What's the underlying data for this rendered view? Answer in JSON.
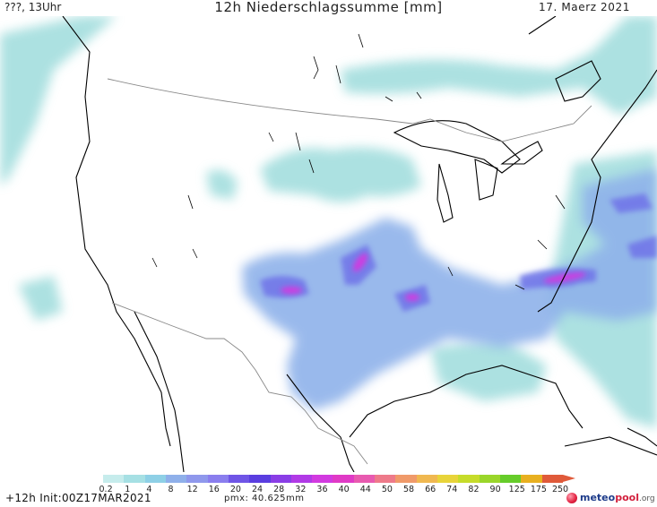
{
  "header": {
    "left": "???, 13Uhr",
    "title": "12h Niederschlagssumme [mm]",
    "date": "17. Maerz 2021"
  },
  "legend": {
    "ticks": [
      "0.2",
      "1",
      "4",
      "8",
      "12",
      "16",
      "20",
      "24",
      "28",
      "32",
      "36",
      "40",
      "44",
      "50",
      "58",
      "66",
      "74",
      "82",
      "90",
      "125",
      "175",
      "250"
    ],
    "colors": [
      "#c6ecec",
      "#a6e0e4",
      "#8ed0e6",
      "#8fb0ea",
      "#8f98ec",
      "#8a7eee",
      "#6f55e6",
      "#5a3ee0",
      "#8a3ee6",
      "#b13ae6",
      "#d23ae0",
      "#e03ac6",
      "#e85ab0",
      "#ee7a8a",
      "#f09a6a",
      "#f0b850",
      "#e8d43a",
      "#c6dc2a",
      "#9ad62a",
      "#66cc2a",
      "#e8b020",
      "#e05a3a"
    ]
  },
  "footer": {
    "init": "+12h Init:00Z17MAR2021",
    "pmx": "pmx: 40.625mm",
    "logo_main": "meteo",
    "logo_accent": "pool",
    "logo_suffix": ".org"
  },
  "map": {
    "land_color": "#ffffff",
    "coast_color": "#000000",
    "border_color": "#888888",
    "precip_light": "#9edcdc",
    "precip_mid": "#8fb2ea",
    "precip_heavy": "#6f73e8",
    "precip_max": "#d23ae0"
  }
}
